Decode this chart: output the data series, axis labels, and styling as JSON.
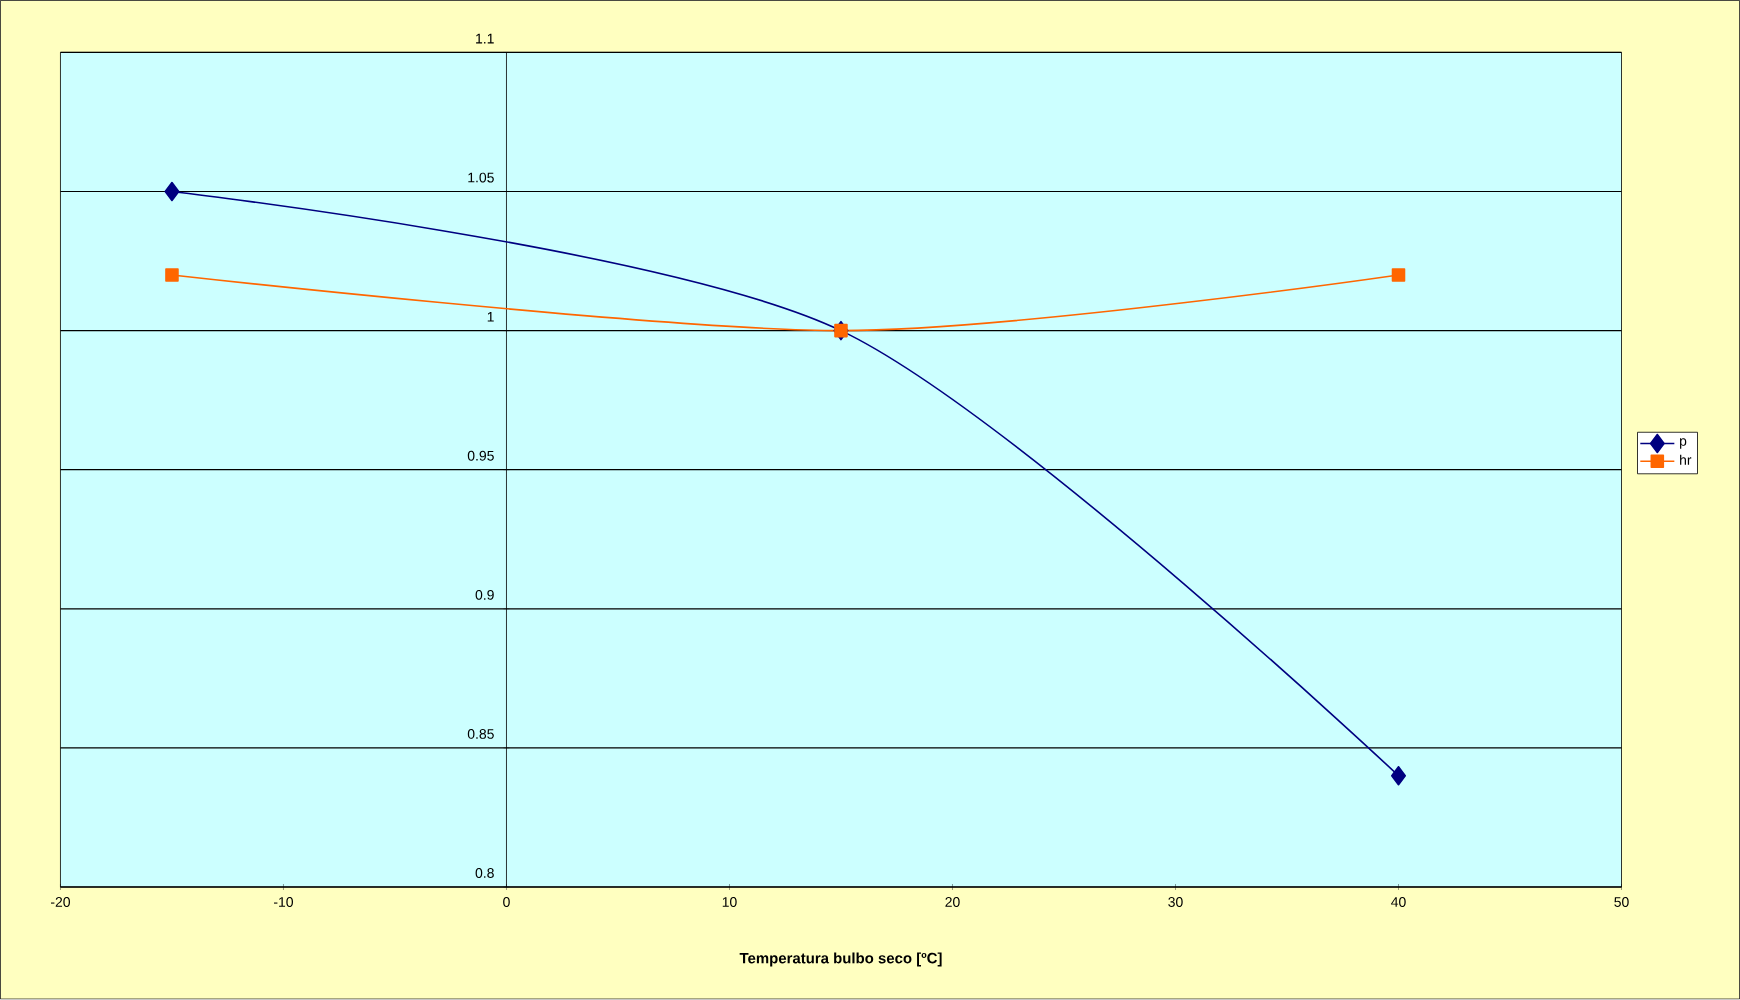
{
  "chart_data": {
    "type": "line",
    "xlabel": "Temperatura bulbo seco [ºC]",
    "xlim": [
      -20,
      50
    ],
    "xticks": [
      -20,
      -10,
      0,
      10,
      20,
      30,
      40,
      50
    ],
    "ylim": [
      0.8,
      1.1
    ],
    "yticks": [
      0.8,
      0.85,
      0.9,
      0.95,
      1,
      1.05,
      1.1
    ],
    "grid": "y",
    "legend": "right",
    "series": [
      {
        "name": "p",
        "color": "#000080",
        "marker": "diamond",
        "x": [
          -15,
          15,
          40
        ],
        "values": [
          1.05,
          1.0,
          0.84
        ]
      },
      {
        "name": "hr",
        "color": "#ff6600",
        "marker": "square",
        "x": [
          -15,
          15,
          40
        ],
        "values": [
          1.02,
          1.0,
          1.02
        ]
      }
    ]
  }
}
